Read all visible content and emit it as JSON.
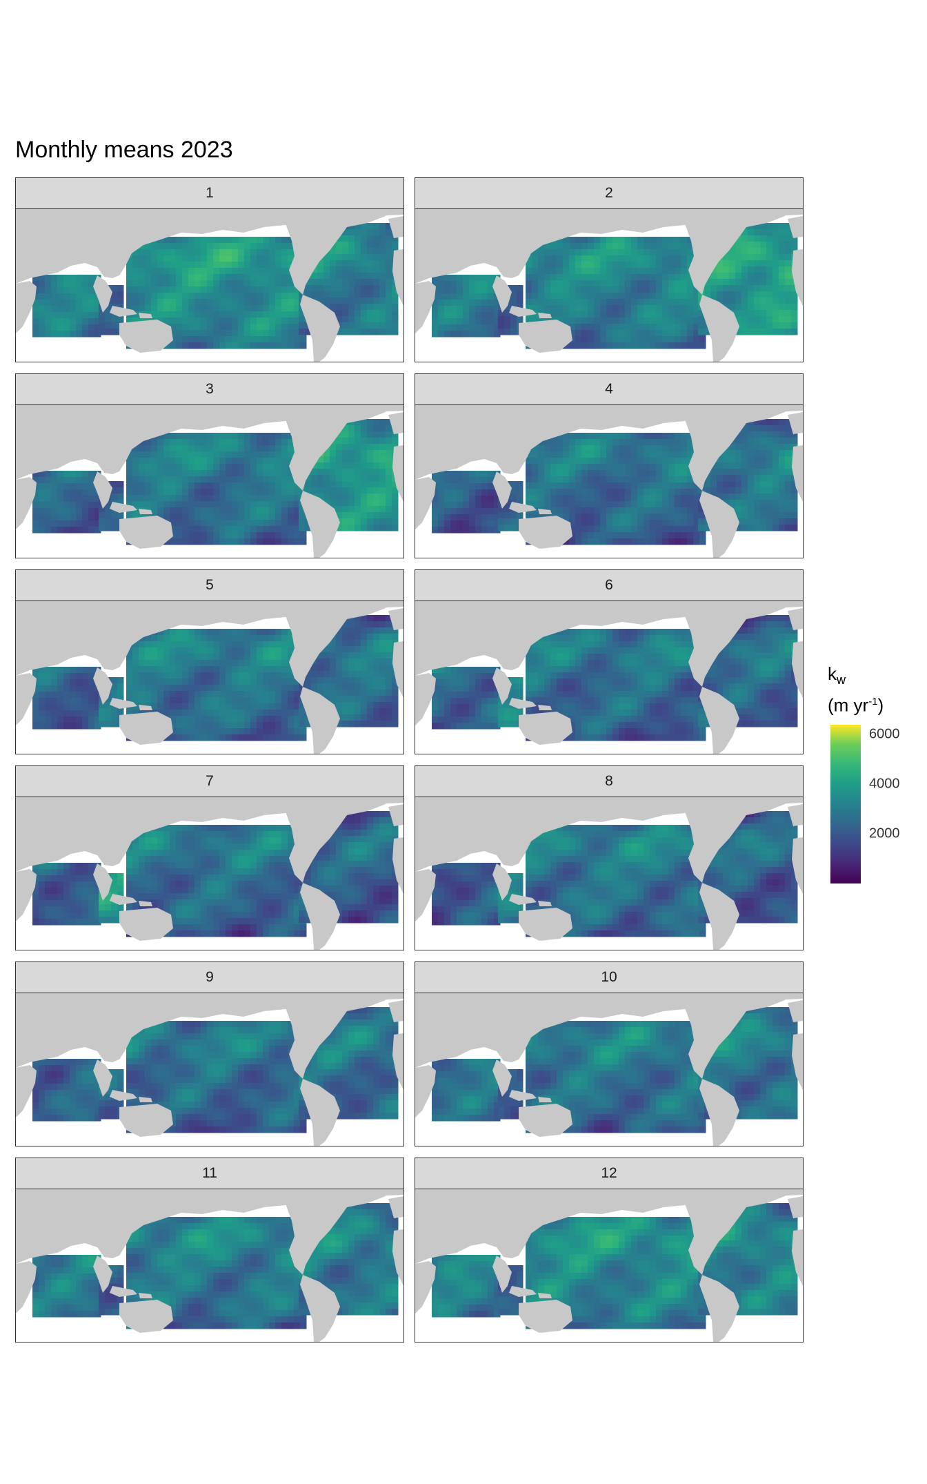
{
  "title": "Monthly means 2023",
  "legend": {
    "title_base": "k",
    "title_sub": "w",
    "title_unit_pre": "(m yr",
    "title_unit_sup": "-1",
    "title_unit_post": ")",
    "range": [
      0,
      6400
    ],
    "ticks": [
      "2000",
      "4000",
      "6000"
    ],
    "tick_values": [
      2000,
      4000,
      6000
    ],
    "colormap": "viridis"
  },
  "colors": {
    "land": "#c8c8c8",
    "strip": "#d9d9d9",
    "border": "#333333"
  },
  "panels": [
    {
      "label": "1"
    },
    {
      "label": "2"
    },
    {
      "label": "3"
    },
    {
      "label": "4"
    },
    {
      "label": "5"
    },
    {
      "label": "6"
    },
    {
      "label": "7"
    },
    {
      "label": "8"
    },
    {
      "label": "9"
    },
    {
      "label": "10"
    },
    {
      "label": "11"
    },
    {
      "label": "12"
    }
  ]
}
